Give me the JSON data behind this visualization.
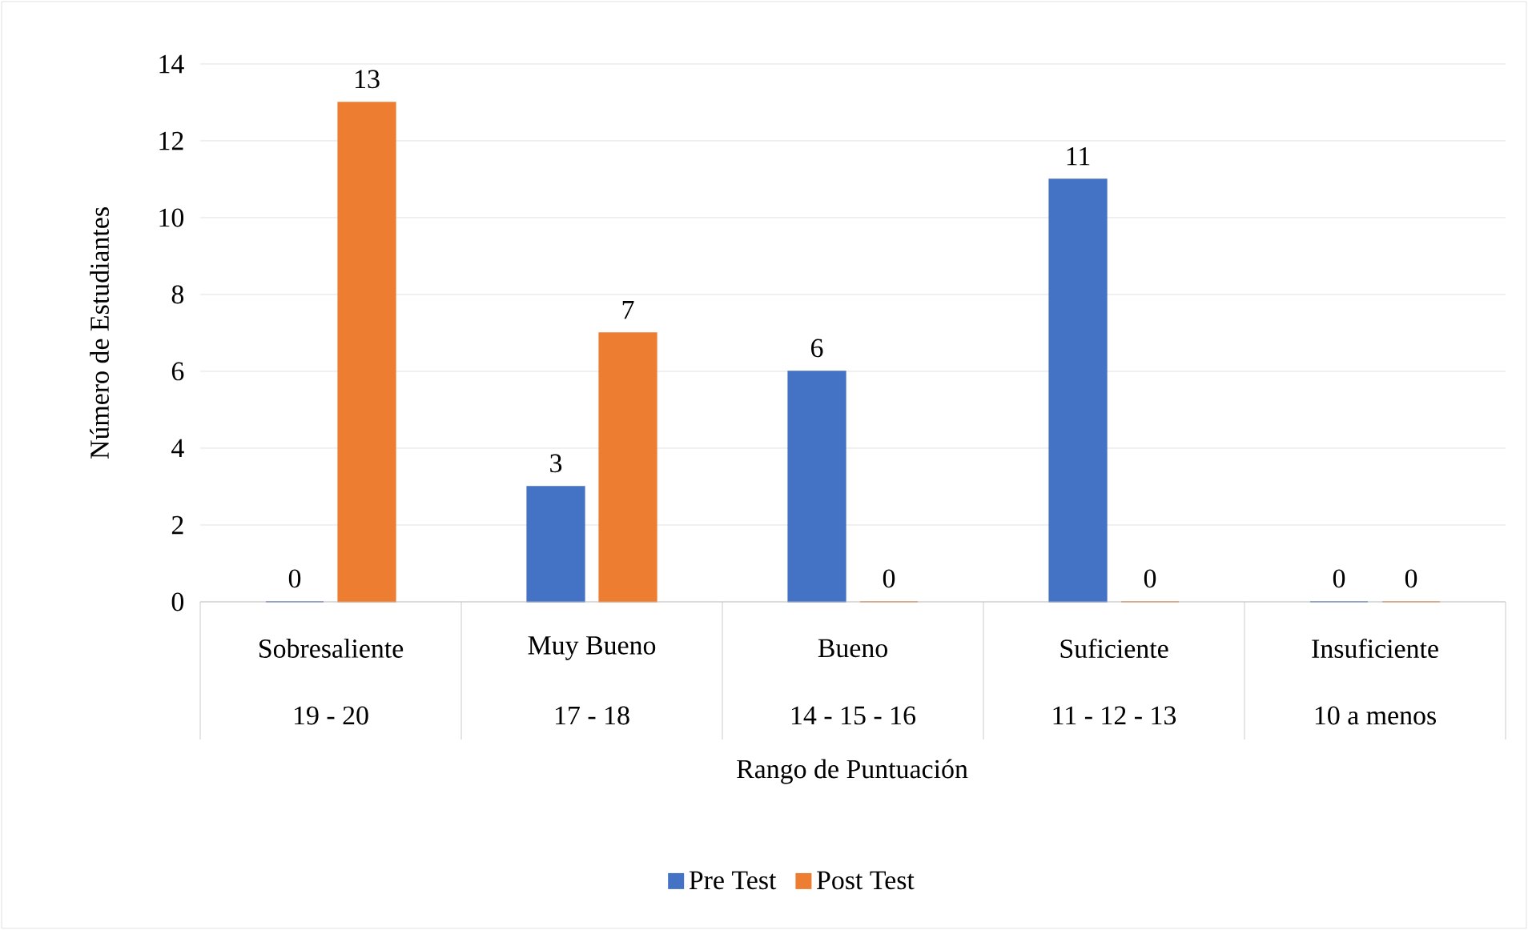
{
  "chart_data": {
    "type": "bar",
    "categories": [
      "Sobresaliente",
      "Muy Bueno",
      "Bueno",
      "Suficiente",
      "Insuficiente"
    ],
    "annotations": [
      "19 - 20",
      "17 - 18",
      "14 - 15 - 16",
      "11 - 12 - 13",
      "10 a menos"
    ],
    "series": [
      {
        "name": "Pre Test",
        "color": "#4472c4",
        "values": [
          0,
          3,
          6,
          11,
          0
        ]
      },
      {
        "name": "Post Test",
        "color": "#ed7d31",
        "values": [
          13,
          7,
          0,
          0,
          0
        ]
      }
    ],
    "xlabel": "Rango de Puntuación",
    "ylabel": "Número de Estudiantes",
    "ylim": [
      0,
      14
    ],
    "yticks": [
      0,
      2,
      4,
      6,
      8,
      10,
      12,
      14
    ],
    "grid": "y",
    "legend": "bottom",
    "data_labels": true
  }
}
